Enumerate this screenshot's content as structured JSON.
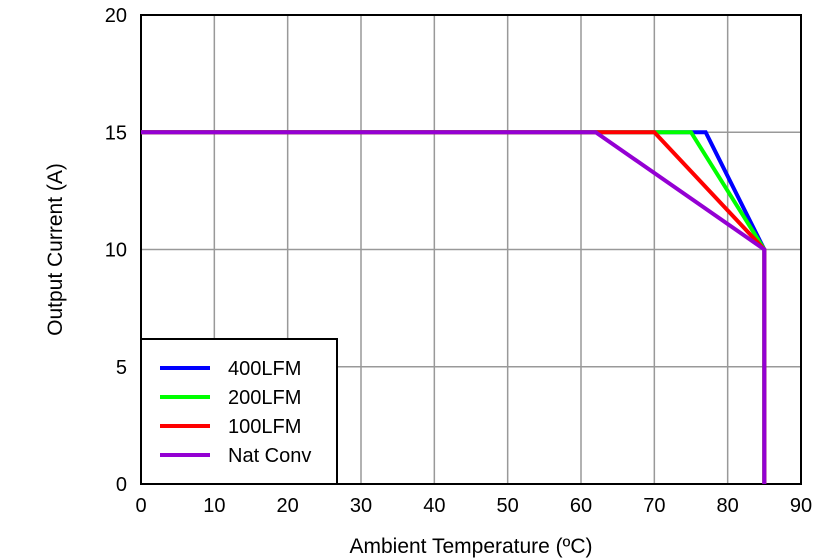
{
  "chart_data": {
    "type": "line",
    "title": "",
    "xlabel": "Ambient Temperature (ºC)",
    "ylabel": "Output Current (A)",
    "xlim": [
      0,
      90
    ],
    "ylim": [
      0,
      20
    ],
    "xticks": [
      0,
      10,
      20,
      30,
      40,
      50,
      60,
      70,
      80,
      90
    ],
    "yticks": [
      0,
      5,
      10,
      15,
      20
    ],
    "grid": true,
    "legend_position": "bottom-left",
    "series": [
      {
        "name": "400LFM",
        "color": "#0000ff",
        "x": [
          0,
          77,
          85,
          85
        ],
        "y": [
          15,
          15,
          10,
          0
        ]
      },
      {
        "name": "200LFM",
        "color": "#00ff00",
        "x": [
          0,
          75,
          85,
          85
        ],
        "y": [
          15,
          15,
          10,
          0
        ]
      },
      {
        "name": "100LFM",
        "color": "#ff0000",
        "x": [
          0,
          70,
          85,
          85
        ],
        "y": [
          15,
          15,
          10,
          0
        ]
      },
      {
        "name": "Nat Conv",
        "color": "#9400d3",
        "x": [
          0,
          62,
          85,
          85
        ],
        "y": [
          15,
          15,
          10,
          0
        ]
      }
    ]
  }
}
